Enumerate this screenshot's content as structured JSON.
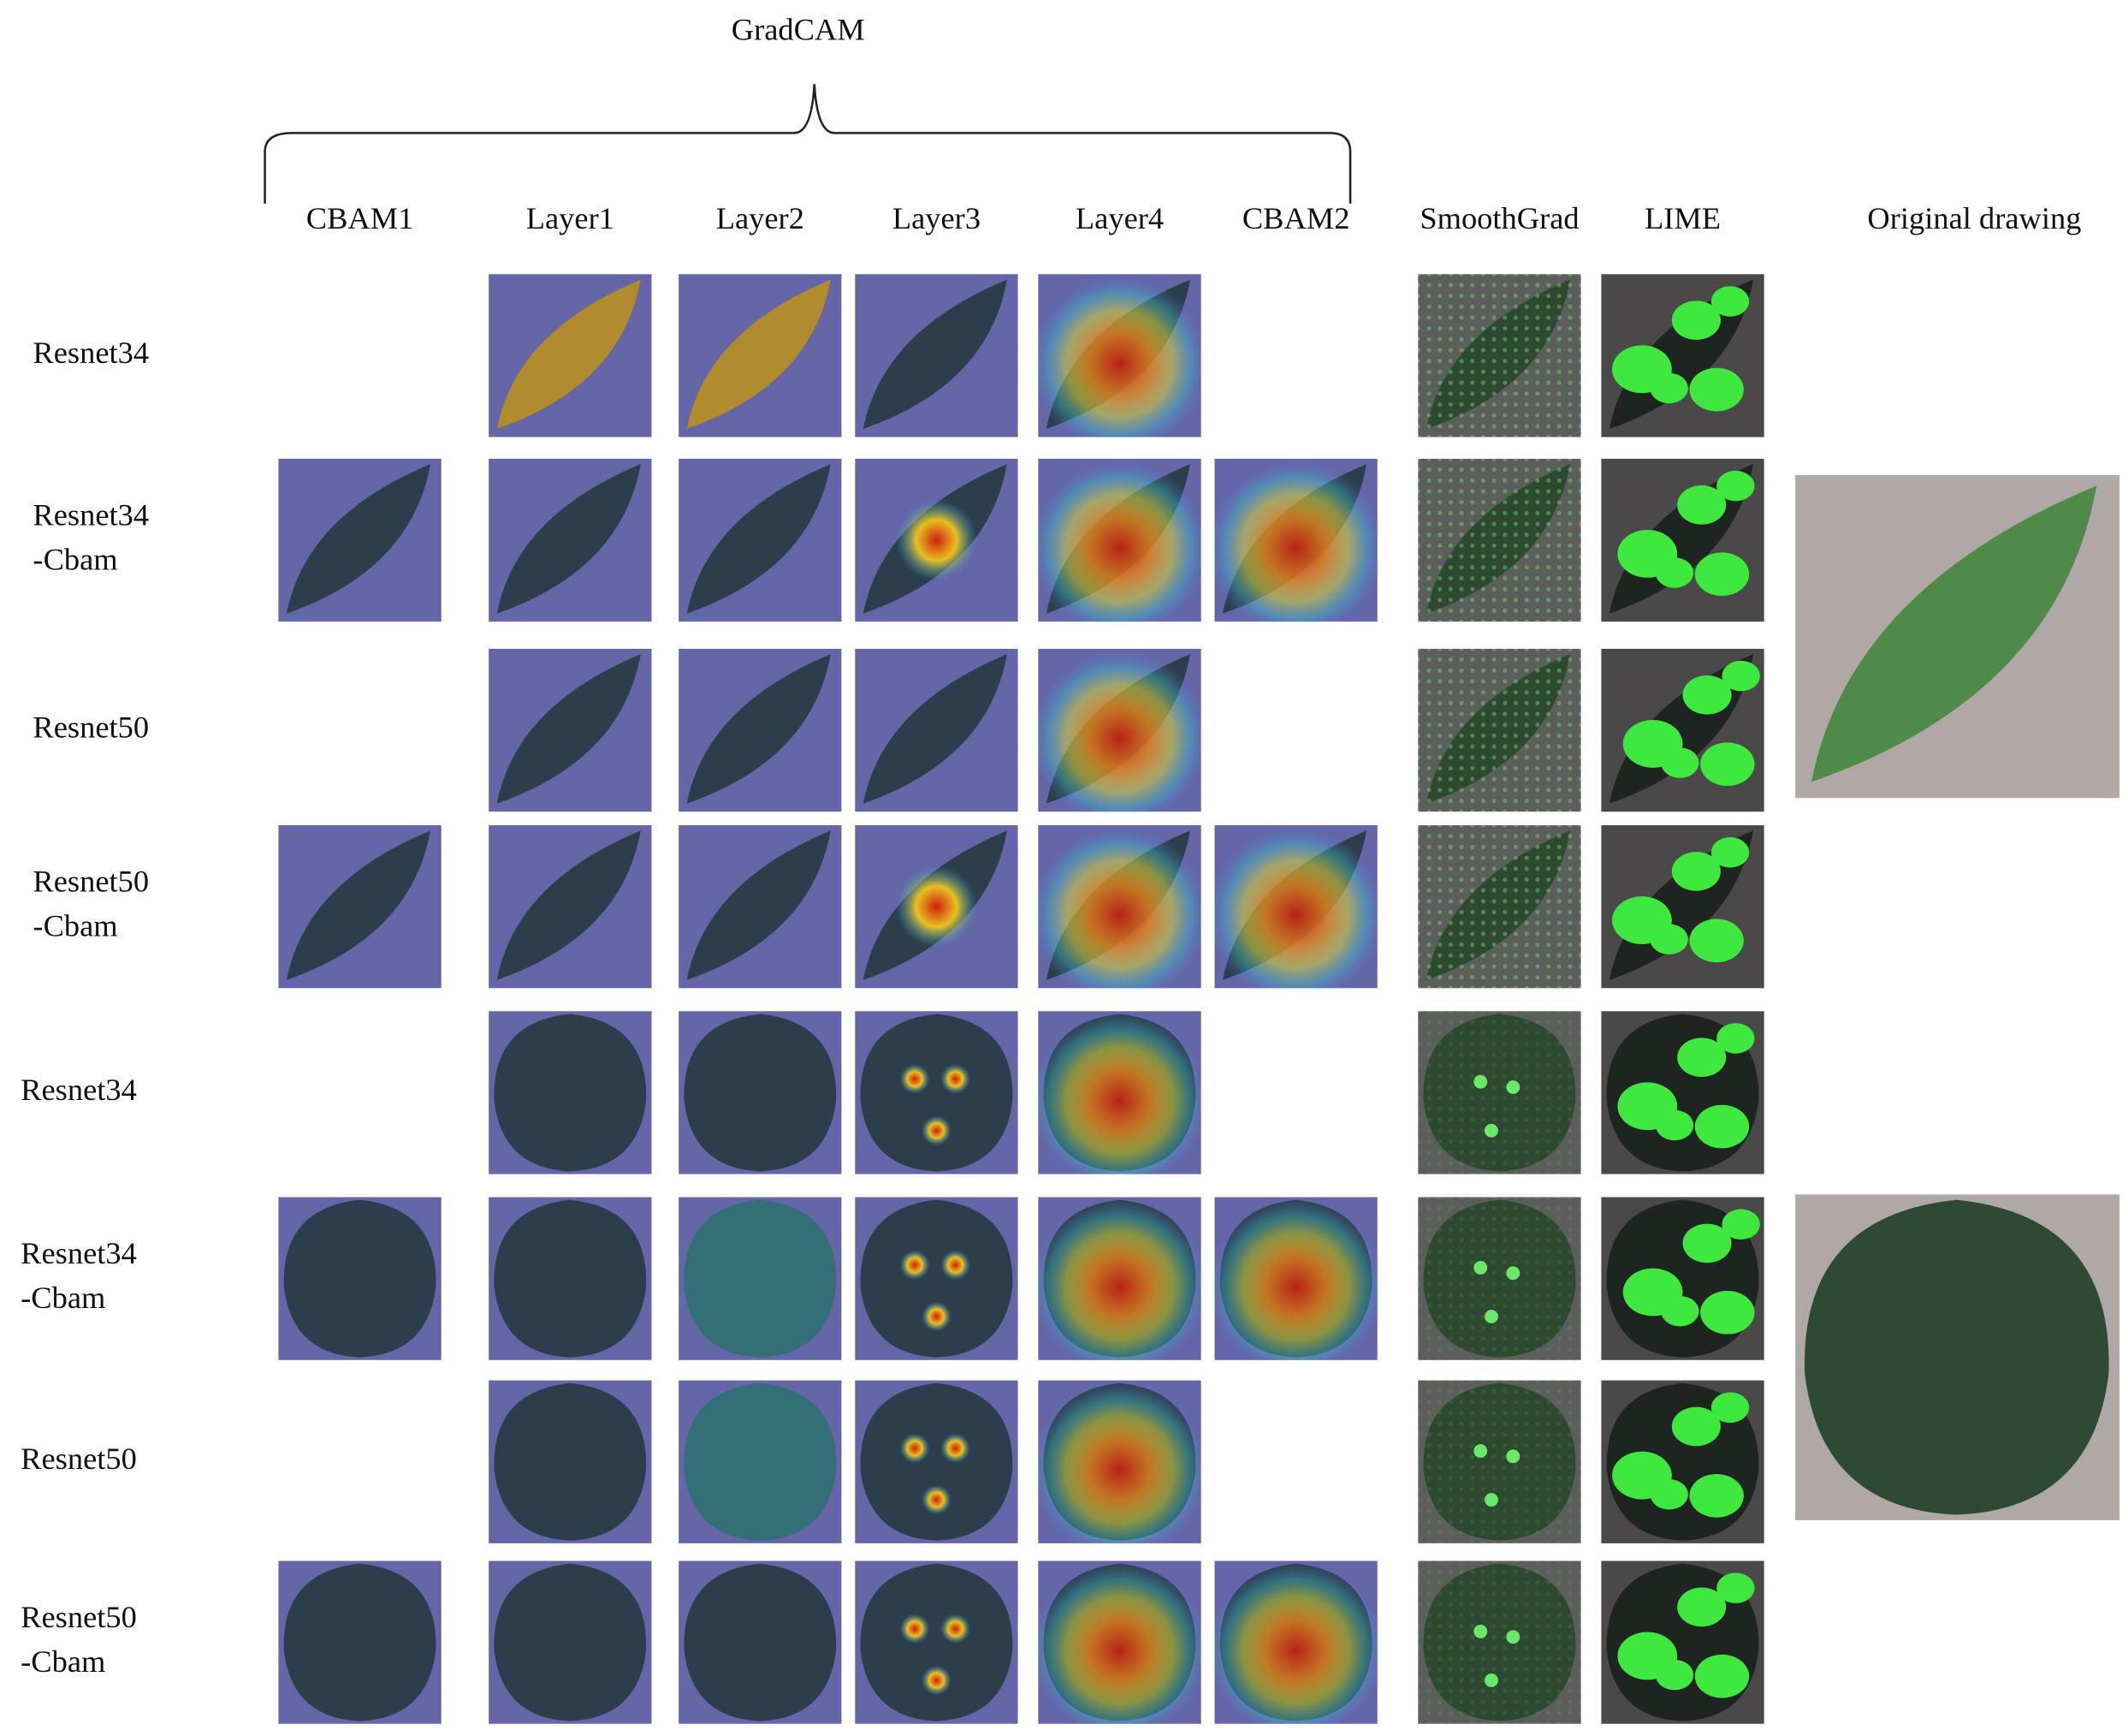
{
  "header": {
    "group_label": "GradCAM",
    "columns": [
      "CBAM1",
      "Layer1",
      "Layer2",
      "Layer3",
      "Layer4",
      "CBAM2",
      "SmoothGrad",
      "LIME",
      "Original drawing"
    ]
  },
  "rows": [
    {
      "label": [
        "Resnet34"
      ]
    },
    {
      "label": [
        "Resnet34",
        "-Cbam"
      ]
    },
    {
      "label": [
        "Resnet50"
      ]
    },
    {
      "label": [
        "Resnet50",
        "-Cbam"
      ]
    },
    {
      "label": [
        "Resnet34"
      ]
    },
    {
      "label": [
        "Resnet34",
        "-Cbam"
      ]
    },
    {
      "label": [
        "Resnet50"
      ]
    },
    {
      "label": [
        "Resnet50",
        "-Cbam"
      ]
    }
  ]
}
